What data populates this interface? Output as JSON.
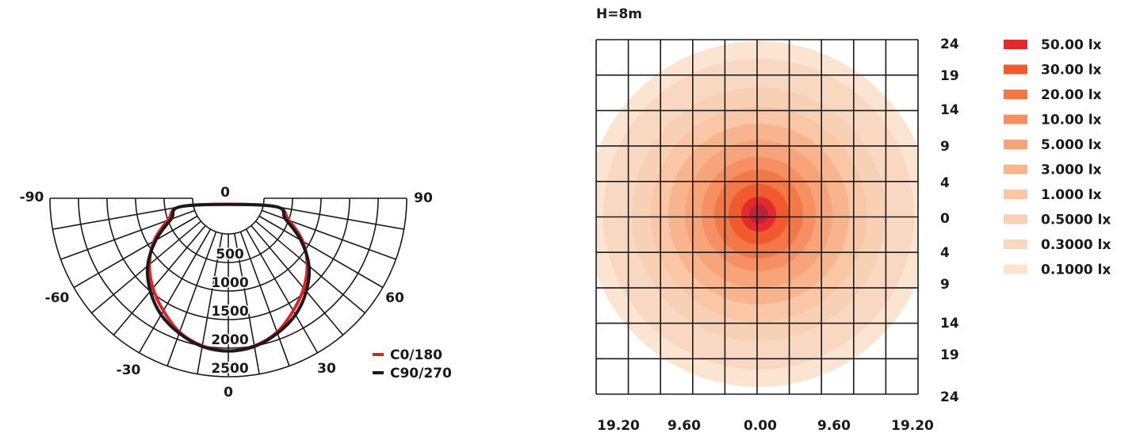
{
  "chart_data": [
    {
      "type": "polar",
      "angle_labels": [
        "-90",
        "-60",
        "-30",
        "0",
        "0",
        "30",
        "60",
        "90"
      ],
      "radial_labels": [
        "500",
        "1000",
        "1500",
        "2000",
        "2500"
      ],
      "r_ticks": [
        500,
        1000,
        1500,
        2000,
        2500
      ],
      "angles_deg": [
        -90,
        -80,
        -70,
        -60,
        -50,
        -40,
        -30,
        -20,
        -10,
        0,
        10,
        20,
        30,
        40,
        50,
        60,
        70,
        80,
        90
      ],
      "rlim": [
        0,
        2500
      ],
      "grid": true,
      "legend_position": "bottom-right",
      "series": [
        {
          "name": "C0/180",
          "color": "#e3202a",
          "angles": [
            -80,
            -70,
            -60,
            -50,
            -40,
            -30,
            -20,
            -10,
            0,
            10,
            20,
            30,
            40,
            50,
            60,
            70,
            80
          ],
          "values": [
            150,
            500,
            880,
            1180,
            1430,
            1650,
            1870,
            2000,
            2050,
            2000,
            1870,
            1650,
            1430,
            1180,
            880,
            500,
            150
          ]
        },
        {
          "name": "C90/270",
          "color": "#1a1a1a",
          "angles": [
            -80,
            -70,
            -60,
            -50,
            -40,
            -30,
            -20,
            -10,
            0,
            10,
            20,
            30,
            40,
            50,
            60,
            70,
            80
          ],
          "values": [
            160,
            440,
            840,
            1220,
            1500,
            1730,
            1890,
            2010,
            2050,
            2010,
            1890,
            1730,
            1500,
            1220,
            840,
            440,
            160
          ]
        }
      ]
    },
    {
      "type": "contour",
      "title": "H=8m",
      "x_ticks": [
        "19.20",
        "9.60",
        "0.00",
        "9.60",
        "19.20"
      ],
      "y_ticks": [
        "24",
        "19",
        "14",
        "9",
        "4",
        "0",
        "4",
        "9",
        "14",
        "19",
        "24"
      ],
      "grid": true,
      "legend_position": "right",
      "levels": [
        {
          "label": "50.00 lx",
          "color": "#e42a2c",
          "value": 50
        },
        {
          "label": "30.00 lx",
          "color": "#f05a2c",
          "value": 30
        },
        {
          "label": "20.00 lx",
          "color": "#f37848",
          "value": 20
        },
        {
          "label": "10.00 lx",
          "color": "#f69064",
          "value": 10
        },
        {
          "label": "5.000 lx",
          "color": "#f7a47a",
          "value": 5
        },
        {
          "label": "3.000 lx",
          "color": "#f8b48c",
          "value": 3
        },
        {
          "label": "1.000 lx",
          "color": "#f9c7a6",
          "value": 1
        },
        {
          "label": "0.5000 lx",
          "color": "#f8d1b4",
          "value": 0.5
        },
        {
          "label": "0.3000 lx",
          "color": "#f8d8c0",
          "value": 0.3
        },
        {
          "label": "0.1000 lx",
          "color": "#fbe4d0",
          "value": 0.1
        }
      ]
    }
  ]
}
